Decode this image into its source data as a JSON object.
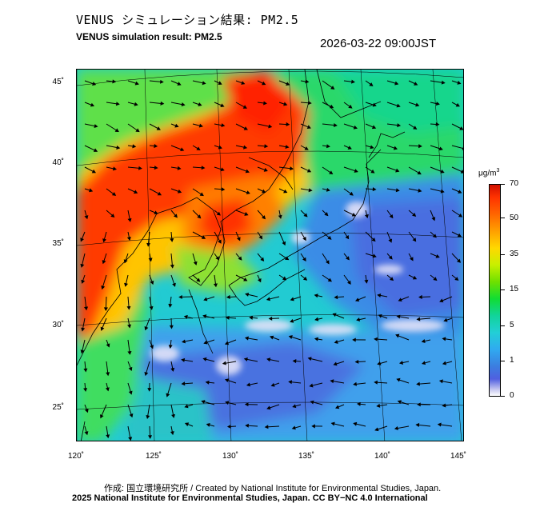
{
  "header": {
    "title_jp": "VENUS シミュレーション結果: PM2.5",
    "title_en": "VENUS simulation result: PM2.5",
    "timestamp": "2026-03-22 09:00JST"
  },
  "map": {
    "lat_labels": [
      "45˚",
      "40˚",
      "35˚",
      "30˚",
      "25˚"
    ],
    "lon_labels": [
      "120˚",
      "125˚",
      "130˚",
      "135˚",
      "140˚",
      "145˚"
    ]
  },
  "colorbar": {
    "unit_prefix": "μg/m",
    "unit_sup": "3",
    "ticks": [
      "70",
      "50",
      "35",
      "15",
      "5",
      "1",
      "0"
    ]
  },
  "footer": {
    "credit_jp": "作成: 国立環境研究所 / Created by National Institute for Environmental Studies, Japan.",
    "credit_en": "2025 National Institute for Environmental Studies, Japan. CC BY−NC 4.0 International"
  }
}
